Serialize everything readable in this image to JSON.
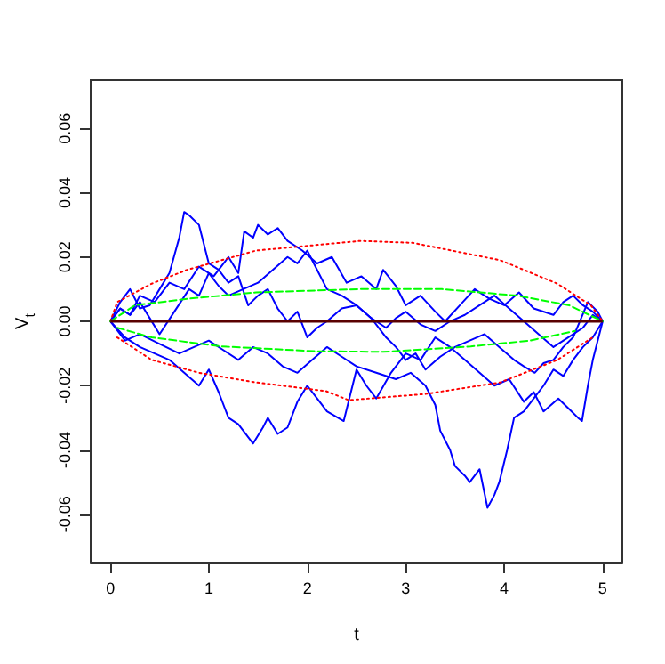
{
  "chart_data": {
    "type": "line",
    "xlabel": "t",
    "ylabel": "V$_{t}$",
    "xlim": [
      -0.2,
      5.2
    ],
    "ylim": [
      -0.075,
      0.075
    ],
    "xticks": [
      0,
      1,
      2,
      3,
      4,
      5
    ],
    "yticks": [
      {
        "value": -0.06,
        "label": "-0.06"
      },
      {
        "value": -0.04,
        "label": "-0.04"
      },
      {
        "value": -0.02,
        "label": "-0.02"
      },
      {
        "value": 0,
        "label": "0.00"
      },
      {
        "value": 0.02,
        "label": "0.02"
      },
      {
        "value": 0.04,
        "label": "0.04"
      },
      {
        "value": 0.06,
        "label": "0.06"
      }
    ],
    "grid": false,
    "series": [
      {
        "color": "#0000ff",
        "line_style": "solid",
        "x": [
          0,
          0.1,
          0.2,
          0.3,
          0.4,
          0.5,
          0.6,
          0.7,
          0.75,
          0.8,
          0.9,
          1.0,
          1.1,
          1.2,
          1.3,
          1.4,
          1.5,
          1.6,
          1.7,
          1.8,
          1.9,
          2.0,
          2.1,
          2.2,
          2.35,
          2.5,
          2.65,
          2.8,
          2.9,
          3.0,
          3.15,
          3.3,
          3.45,
          3.6,
          3.75,
          3.9,
          4.05,
          4.2,
          4.35,
          4.5,
          4.65,
          4.8,
          4.9,
          5.0
        ],
        "values": [
          0,
          0.006,
          0.01,
          0.004,
          0.005,
          0.01,
          0.015,
          0.026,
          0.034,
          0.033,
          0.03,
          0.018,
          0.016,
          0.012,
          0.014,
          0.005,
          0.008,
          0.01,
          0.004,
          0,
          0.003,
          -0.005,
          -0.002,
          0,
          0.004,
          0.005,
          0.001,
          -0.002,
          0.001,
          0.003,
          -0.001,
          -0.003,
          0,
          0.002,
          0.005,
          0.008,
          0.004,
          0,
          -0.004,
          -0.008,
          -0.005,
          -0.002,
          0.002,
          0
        ]
      },
      {
        "color": "#0000ff",
        "line_style": "solid",
        "x": [
          0,
          0.1,
          0.2,
          0.3,
          0.45,
          0.6,
          0.75,
          0.9,
          1.05,
          1.2,
          1.3,
          1.36,
          1.45,
          1.5,
          1.6,
          1.7,
          1.8,
          1.95,
          2.1,
          2.25,
          2.4,
          2.55,
          2.7,
          2.77,
          2.9,
          3.0,
          3.15,
          3.3,
          3.4,
          3.55,
          3.7,
          3.85,
          4.0,
          4.15,
          4.3,
          4.5,
          4.6,
          4.7,
          4.8,
          4.9,
          5.0
        ],
        "values": [
          0,
          0.004,
          0.002,
          0.008,
          0.006,
          0.012,
          0.01,
          0.017,
          0.014,
          0.02,
          0.015,
          0.028,
          0.026,
          0.03,
          0.027,
          0.029,
          0.025,
          0.022,
          0.018,
          0.02,
          0.012,
          0.014,
          0.01,
          0.016,
          0.011,
          0.005,
          0.008,
          0.003,
          0,
          0.005,
          0.01,
          0.007,
          0.005,
          0.009,
          0.004,
          0.002,
          0.006,
          0.008,
          0.005,
          0.003,
          0
        ]
      },
      {
        "color": "#0000ff",
        "line_style": "solid",
        "x": [
          0,
          0.15,
          0.3,
          0.5,
          0.7,
          0.85,
          1.0,
          1.15,
          1.3,
          1.45,
          1.6,
          1.75,
          1.9,
          2.05,
          2.2,
          2.35,
          2.5,
          2.7,
          2.9,
          3.05,
          3.2,
          3.3,
          3.35,
          3.45,
          3.5,
          3.6,
          3.65,
          3.75,
          3.83,
          3.9,
          3.95,
          4.03,
          4.1,
          4.2,
          4.3,
          4.4,
          4.5,
          4.6,
          4.7,
          4.8,
          4.9,
          5.0
        ],
        "values": [
          0,
          -0.006,
          -0.004,
          -0.007,
          -0.01,
          -0.008,
          -0.006,
          -0.009,
          -0.012,
          -0.008,
          -0.01,
          -0.014,
          -0.016,
          -0.012,
          -0.008,
          -0.011,
          -0.014,
          -0.016,
          -0.018,
          -0.016,
          -0.02,
          -0.026,
          -0.034,
          -0.04,
          -0.045,
          -0.048,
          -0.05,
          -0.046,
          -0.058,
          -0.054,
          -0.05,
          -0.04,
          -0.03,
          -0.028,
          -0.024,
          -0.02,
          -0.015,
          -0.017,
          -0.012,
          -0.008,
          -0.005,
          0
        ]
      },
      {
        "color": "#0000ff",
        "line_style": "solid",
        "x": [
          0,
          0.15,
          0.3,
          0.45,
          0.6,
          0.75,
          0.9,
          1.0,
          1.1,
          1.2,
          1.3,
          1.45,
          1.55,
          1.6,
          1.7,
          1.8,
          1.9,
          2.0,
          2.1,
          2.2,
          2.37,
          2.5,
          2.6,
          2.7,
          2.85,
          3.0,
          3.15,
          3.3,
          3.45,
          3.6,
          3.75,
          3.9,
          4.05,
          4.2,
          4.3,
          4.4,
          4.55,
          4.65,
          4.75,
          4.79,
          4.85,
          4.9,
          5.0
        ],
        "values": [
          0,
          -0.005,
          -0.008,
          -0.01,
          -0.012,
          -0.016,
          -0.02,
          -0.015,
          -0.022,
          -0.03,
          -0.032,
          -0.038,
          -0.033,
          -0.03,
          -0.035,
          -0.033,
          -0.025,
          -0.02,
          -0.024,
          -0.028,
          -0.031,
          -0.015,
          -0.02,
          -0.024,
          -0.016,
          -0.01,
          -0.012,
          -0.005,
          -0.008,
          -0.012,
          -0.016,
          -0.02,
          -0.018,
          -0.025,
          -0.022,
          -0.028,
          -0.024,
          -0.027,
          -0.03,
          -0.031,
          -0.02,
          -0.012,
          0
        ]
      },
      {
        "color": "#0000ff",
        "line_style": "solid",
        "x": [
          0,
          0.1,
          0.2,
          0.3,
          0.4,
          0.5,
          0.65,
          0.8,
          0.9,
          1.0,
          1.1,
          1.2,
          1.35,
          1.5,
          1.65,
          1.8,
          1.9,
          2.0,
          2.1,
          2.2,
          2.35,
          2.5,
          2.65,
          2.8,
          2.9,
          3.0,
          3.1,
          3.2,
          3.35,
          3.5,
          3.65,
          3.8,
          3.95,
          4.1,
          4.2,
          4.31,
          4.4,
          4.5,
          4.6,
          4.7,
          4.85,
          4.95,
          5.0
        ],
        "values": [
          0,
          0.004,
          0.002,
          0.006,
          0.001,
          -0.004,
          0.003,
          0.01,
          0.008,
          0.015,
          0.011,
          0.008,
          0.01,
          0.012,
          0.016,
          0.02,
          0.018,
          0.022,
          0.016,
          0.01,
          0.008,
          0.005,
          0.001,
          -0.005,
          -0.008,
          -0.012,
          -0.01,
          -0.015,
          -0.011,
          -0.008,
          -0.006,
          -0.004,
          -0.008,
          -0.012,
          -0.014,
          -0.016,
          -0.013,
          -0.012,
          -0.008,
          -0.005,
          0.006,
          0.003,
          0
        ]
      },
      {
        "color": "#ff0000",
        "line_style": "dotted",
        "x": [
          0,
          0.07,
          0.42,
          0.78,
          1.48,
          2.54,
          3.07,
          3.96,
          4.54,
          4.88,
          5.0
        ],
        "values": [
          0,
          0.006,
          0.0117,
          0.016,
          0.022,
          0.025,
          0.0244,
          0.019,
          0.0117,
          0.005,
          0
        ]
      },
      {
        "color": "#ff0000",
        "line_style": "dotted",
        "x": [
          0.07,
          0.42,
          0.9,
          1.48,
          2.19,
          2.42,
          3.2,
          3.96,
          4.54,
          4.9
        ],
        "values": [
          -0.005,
          -0.012,
          -0.016,
          -0.019,
          -0.0217,
          -0.0245,
          -0.0226,
          -0.019,
          -0.012,
          -0.005
        ]
      },
      {
        "color": "#00ff00",
        "line_style": "dashed",
        "x": [
          0,
          0.25,
          0.78,
          1.48,
          2.54,
          3.37,
          4.13,
          4.66,
          5.0
        ],
        "values": [
          0,
          0.005,
          0.007,
          0.009,
          0.01,
          0.01,
          0.008,
          0.005,
          0
        ]
      },
      {
        "color": "#00ff00",
        "line_style": "dashed",
        "x": [
          0.07,
          0.42,
          1.13,
          2.07,
          2.77,
          3.66,
          4.26,
          4.72
        ],
        "values": [
          -0.002,
          -0.005,
          -0.0078,
          -0.0093,
          -0.0095,
          -0.0078,
          -0.006,
          -0.003
        ]
      }
    ],
    "ref_lines": [
      {
        "axis": "y",
        "value": 0,
        "color": "#5a0000",
        "line_style": "solid"
      }
    ]
  }
}
